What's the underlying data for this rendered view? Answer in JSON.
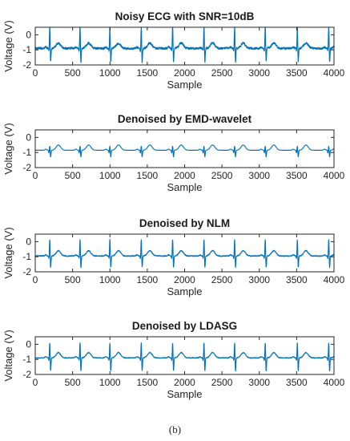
{
  "caption": "(b)",
  "colors": {
    "signal": "#0072bd",
    "axis": "#262626"
  },
  "chart_data": [
    {
      "type": "line",
      "title": "Noisy ECG with SNR=10dB",
      "xlabel": "Sample",
      "ylabel": "Voltage (V)",
      "xlim": [
        0,
        4000
      ],
      "ylim": [
        -2,
        0.5
      ],
      "xticks": [
        0,
        500,
        1000,
        1500,
        2000,
        2500,
        3000,
        3500,
        4000
      ],
      "yticks": [
        -2,
        -1,
        0
      ],
      "grid": false,
      "signal": {
        "baseline": -0.9,
        "r_peak_samples": [
          195,
          600,
          1000,
          1420,
          1840,
          2260,
          2670,
          3080,
          3510,
          3930
        ],
        "r_amplitude": 0.6,
        "s_depth": -1.85,
        "noise_amplitude": 0.07
      }
    },
    {
      "type": "line",
      "title": "Denoised by EMD-wavelet",
      "xlabel": "Sample",
      "ylabel": "Voltage (V)",
      "xlim": [
        0,
        4000
      ],
      "ylim": [
        -2,
        0.5
      ],
      "xticks": [
        0,
        500,
        1000,
        1500,
        2000,
        2500,
        3000,
        3500,
        4000
      ],
      "yticks": [
        -2,
        -1,
        0
      ],
      "grid": false,
      "signal": {
        "baseline": -0.85,
        "r_peak_samples": [
          195,
          600,
          1000,
          1420,
          1840,
          2260,
          2670,
          3080,
          3510,
          3930
        ],
        "r_amplitude": -0.55,
        "s_depth": -1.3,
        "noise_amplitude": 0.0
      }
    },
    {
      "type": "line",
      "title": "Denoised by NLM",
      "xlabel": "Sample",
      "ylabel": "Voltage (V)",
      "xlim": [
        0,
        4000
      ],
      "ylim": [
        -2,
        0.5
      ],
      "xticks": [
        0,
        500,
        1000,
        1500,
        2000,
        2500,
        3000,
        3500,
        4000
      ],
      "yticks": [
        -2,
        -1,
        0
      ],
      "grid": false,
      "signal": {
        "baseline": -0.95,
        "r_peak_samples": [
          195,
          600,
          1000,
          1420,
          1840,
          2260,
          2670,
          3080,
          3510,
          3930
        ],
        "r_amplitude": 0.2,
        "s_depth": -1.75,
        "noise_amplitude": 0.03
      }
    },
    {
      "type": "line",
      "title": "Denoised by LDASG",
      "xlabel": "Sample",
      "ylabel": "Voltage (V)",
      "xlim": [
        0,
        4000
      ],
      "ylim": [
        -2,
        0.5
      ],
      "xticks": [
        0,
        500,
        1000,
        1500,
        2000,
        2500,
        3000,
        3500,
        4000
      ],
      "yticks": [
        -2,
        -1,
        0
      ],
      "grid": false,
      "signal": {
        "baseline": -0.9,
        "r_peak_samples": [
          195,
          600,
          1000,
          1420,
          1840,
          2260,
          2670,
          3080,
          3510,
          3930
        ],
        "r_amplitude": 0.15,
        "s_depth": -1.8,
        "noise_amplitude": 0.025
      }
    }
  ]
}
